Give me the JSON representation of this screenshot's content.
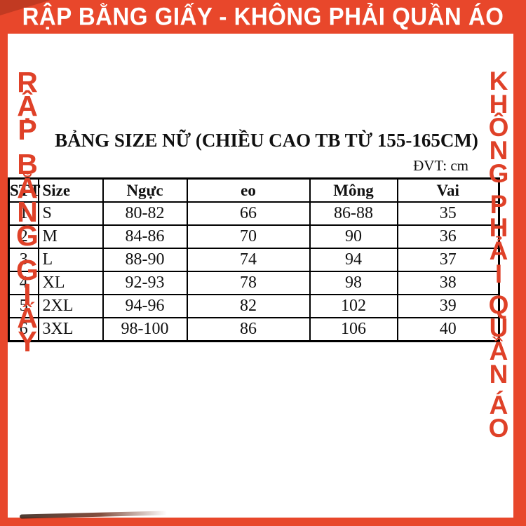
{
  "banner": {
    "text": "RẬP BẰNG GIẤY - KHÔNG PHẢI QUẦN ÁO"
  },
  "left_vertical": {
    "text": "RẬP BẰNG GIẤY",
    "letters": [
      "R",
      "Ậ",
      "P",
      " ",
      "B",
      "Ằ",
      "N",
      "G",
      " ",
      "G",
      "I",
      "Ấ",
      "Y"
    ]
  },
  "right_vertical": {
    "text": "KHÔNG PHẢI QUẦN ÁO",
    "letters": [
      "K",
      "H",
      "Ô",
      "N",
      "G",
      " ",
      "P",
      "H",
      "Ả",
      "I",
      " ",
      "Q",
      "U",
      "Ầ",
      "N",
      " ",
      "Á",
      "O"
    ]
  },
  "table": {
    "title": "BẢNG SIZE NỮ (CHIỀU CAO TB TỪ 155-165CM)",
    "unit": "ĐVT: cm",
    "headers": [
      "STT",
      "Size",
      "Ngực",
      "eo",
      "Mông",
      "Vai"
    ],
    "rows": [
      [
        "1",
        "S",
        "80-82",
        "66",
        "86-88",
        "35"
      ],
      [
        "2",
        "M",
        "84-86",
        "70",
        "90",
        "36"
      ],
      [
        "3",
        "L",
        "88-90",
        "74",
        "94",
        "37"
      ],
      [
        "4",
        "XL",
        "92-93",
        "78",
        "98",
        "38"
      ],
      [
        "5",
        "2XL",
        "94-96",
        "82",
        "102",
        "39"
      ],
      [
        "6",
        "3XL",
        "98-100",
        "86",
        "106",
        "40"
      ]
    ]
  },
  "chart_data": {
    "type": "table",
    "title": "BẢNG SIZE NỮ (CHIỀU CAO TB TỪ 155-165CM)",
    "unit": "cm",
    "columns": [
      "STT",
      "Size",
      "Ngực",
      "eo",
      "Mông",
      "Vai"
    ],
    "rows": [
      [
        "1",
        "S",
        "80-82",
        "66",
        "86-88",
        "35"
      ],
      [
        "2",
        "M",
        "84-86",
        "70",
        "90",
        "36"
      ],
      [
        "3",
        "L",
        "88-90",
        "74",
        "94",
        "37"
      ],
      [
        "4",
        "XL",
        "92-93",
        "78",
        "98",
        "38"
      ],
      [
        "5",
        "2XL",
        "94-96",
        "82",
        "102",
        "39"
      ],
      [
        "6",
        "3XL",
        "98-100",
        "86",
        "106",
        "40"
      ]
    ]
  },
  "colors": {
    "accent_red": "#E8472B",
    "letter_red": "#DF4128",
    "corner_fold": "#C13A22",
    "table_border": "#000000",
    "banner_text": "#FFFFFF"
  }
}
